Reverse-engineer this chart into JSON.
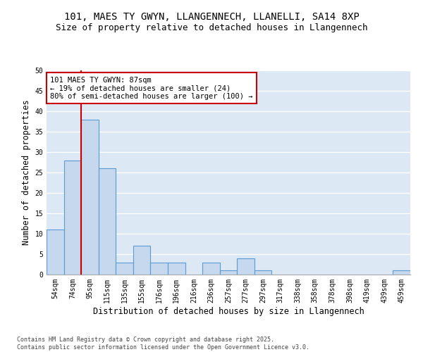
{
  "title1": "101, MAES TY GWYN, LLANGENNECH, LLANELLI, SA14 8XP",
  "title2": "Size of property relative to detached houses in Llangennech",
  "xlabel": "Distribution of detached houses by size in Llangennech",
  "ylabel": "Number of detached properties",
  "categories": [
    "54sqm",
    "74sqm",
    "95sqm",
    "115sqm",
    "135sqm",
    "155sqm",
    "176sqm",
    "196sqm",
    "216sqm",
    "236sqm",
    "257sqm",
    "277sqm",
    "297sqm",
    "317sqm",
    "338sqm",
    "358sqm",
    "378sqm",
    "398sqm",
    "419sqm",
    "439sqm",
    "459sqm"
  ],
  "values": [
    11,
    28,
    38,
    26,
    3,
    7,
    3,
    3,
    0,
    3,
    1,
    4,
    1,
    0,
    0,
    0,
    0,
    0,
    0,
    0,
    1
  ],
  "bar_color": "#c5d8ed",
  "bar_edge_color": "#5b9bd5",
  "vertical_line_x": 1.5,
  "vline_color": "#cc0000",
  "annotation_line1": "101 MAES TY GWYN: 87sqm",
  "annotation_line2": "← 19% of detached houses are smaller (24)",
  "annotation_line3": "80% of semi-detached houses are larger (100) →",
  "annotation_box_color": "#cc0000",
  "ylim": [
    0,
    50
  ],
  "yticks": [
    0,
    5,
    10,
    15,
    20,
    25,
    30,
    35,
    40,
    45,
    50
  ],
  "background_color": "#dde8f5",
  "footer": "Contains HM Land Registry data © Crown copyright and database right 2025.\nContains public sector information licensed under the Open Government Licence v3.0.",
  "title_fontsize": 10,
  "subtitle_fontsize": 9,
  "tick_fontsize": 7,
  "label_fontsize": 8.5,
  "annotation_fontsize": 7.5
}
